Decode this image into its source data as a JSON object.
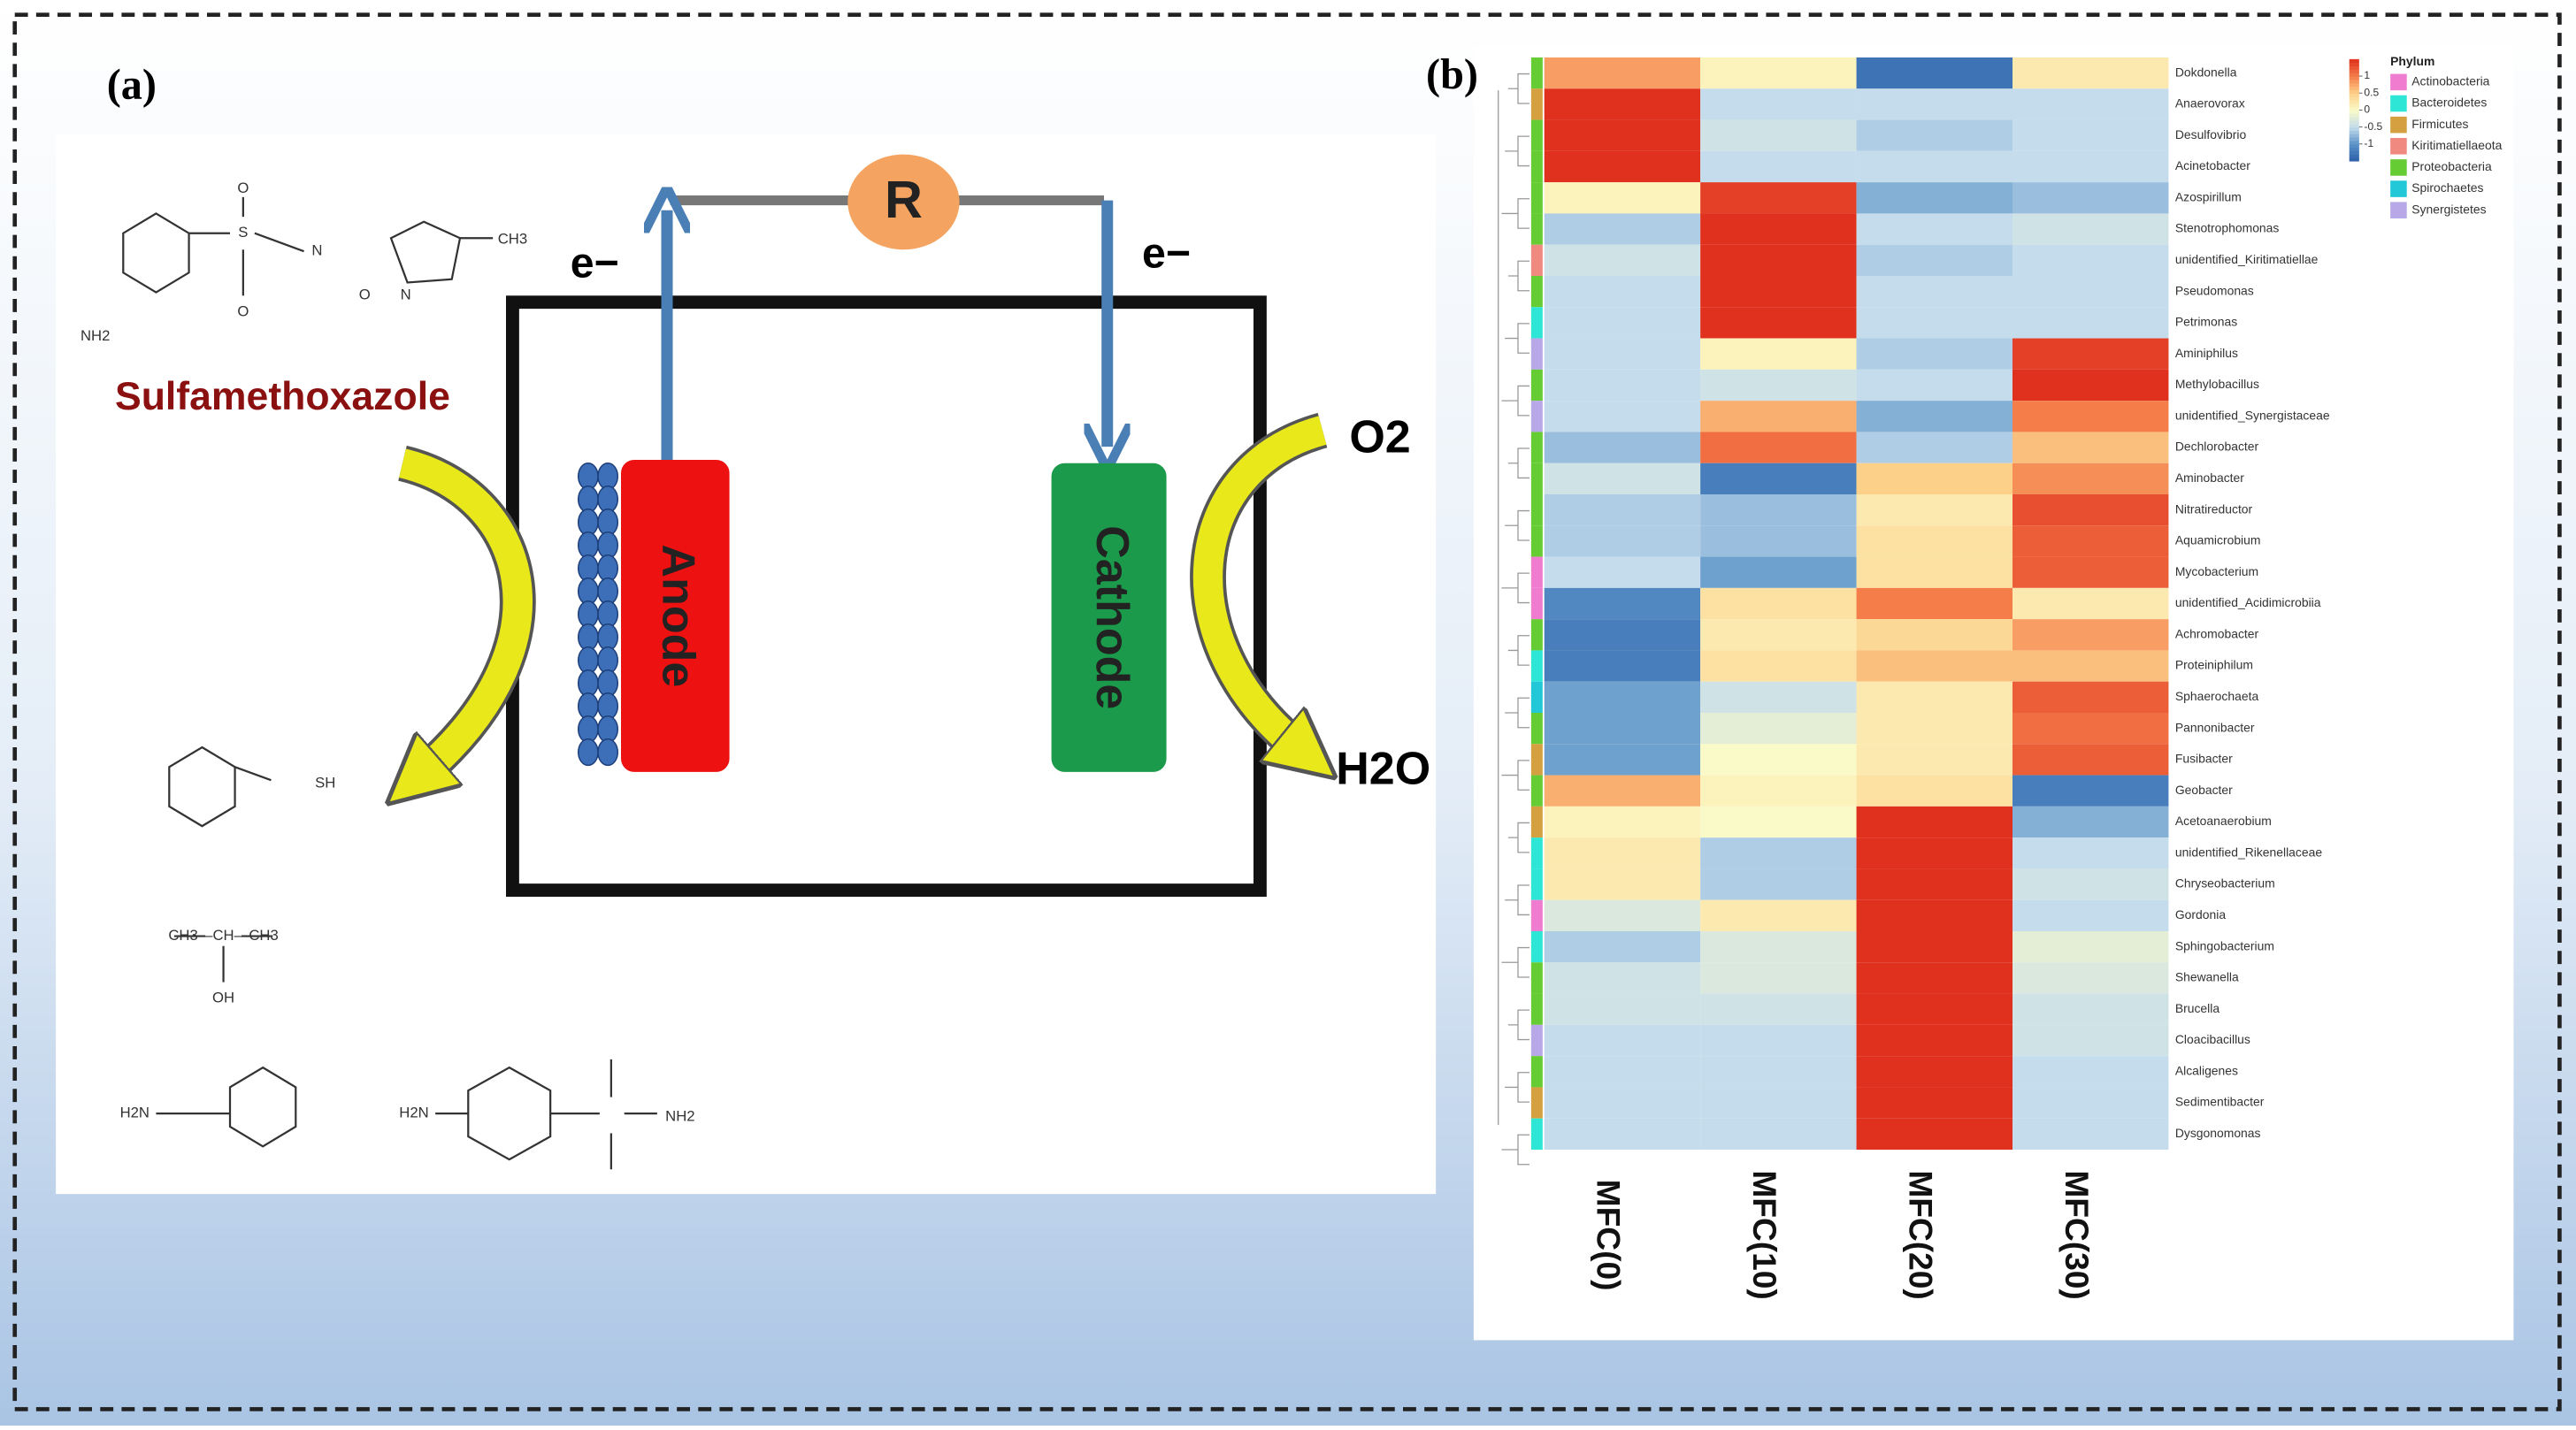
{
  "panel_a": {
    "label": "(a)",
    "resistor": "R",
    "electron_left": "e−",
    "electron_right": "e−",
    "compound": "Sulfamethoxazole",
    "anode": "Anode",
    "cathode": "Cathode",
    "oxygen": "O2",
    "water": "H2O",
    "structure_labels": [
      "NH2",
      "CH3",
      "SH",
      "CH3—CH—CH3",
      "OH",
      "H2N",
      "H2N",
      "NH2",
      "S",
      "N",
      "N",
      "O",
      "O",
      "O"
    ]
  },
  "panel_b": {
    "label": "(b)",
    "heatmap": {
      "columns": [
        "MFC(0)",
        "MFC(10)",
        "MFC(20)",
        "MFC(30)"
      ],
      "rows": [
        "Dokdonella",
        "Anaerovorax",
        "Desulfovibrio",
        "Acinetobacter",
        "Azospirillum",
        "Stenotrophomonas",
        "unidentified_Kiritimatiellae",
        "Pseudomonas",
        "Petrimonas",
        "Aminiphilus",
        "Methylobacillus",
        "unidentified_Synergistaceae",
        "Dechlorobacter",
        "Aminobacter",
        "Nitratireductor",
        "Aquamicrobium",
        "Mycobacterium",
        "unidentified_Acidimicrobiia",
        "Achromobacter",
        "Proteiniphilum",
        "Sphaerochaeta",
        "Pannonibacter",
        "Fusibacter",
        "Geobacter",
        "Acetoanaerobium",
        "unidentified_Rikenellaceae",
        "Chryseobacterium",
        "Gordonia",
        "Sphingobacterium",
        "Shewanella",
        "Brucella",
        "Cloacibacillus",
        "Alcaligenes",
        "Sedimentibacter",
        "Dysgonomonas"
      ],
      "row_phylum": [
        "Proteobacteria",
        "Firmicutes",
        "Proteobacteria",
        "Proteobacteria",
        "Proteobacteria",
        "Proteobacteria",
        "Kiritimatiellaeota",
        "Proteobacteria",
        "Bacteroidetes",
        "Synergistetes",
        "Proteobacteria",
        "Synergistetes",
        "Proteobacteria",
        "Proteobacteria",
        "Proteobacteria",
        "Proteobacteria",
        "Actinobacteria",
        "Actinobacteria",
        "Proteobacteria",
        "Bacteroidetes",
        "Spirochaetes",
        "Proteobacteria",
        "Firmicutes",
        "Proteobacteria",
        "Firmicutes",
        "Bacteroidetes",
        "Bacteroidetes",
        "Actinobacteria",
        "Bacteroidetes",
        "Proteobacteria",
        "Proteobacteria",
        "Synergistetes",
        "Proteobacteria",
        "Firmicutes",
        "Bacteroidetes"
      ],
      "values": [
        [
          0.8,
          0.1,
          -1.3,
          0.2
        ],
        [
          1.5,
          -0.5,
          -0.5,
          -0.5
        ],
        [
          1.5,
          -0.4,
          -0.6,
          -0.5
        ],
        [
          1.5,
          -0.5,
          -0.5,
          -0.5
        ],
        [
          0.1,
          1.4,
          -0.8,
          -0.7
        ],
        [
          -0.6,
          1.5,
          -0.5,
          -0.4
        ],
        [
          -0.4,
          1.5,
          -0.6,
          -0.5
        ],
        [
          -0.5,
          1.5,
          -0.5,
          -0.5
        ],
        [
          -0.5,
          1.5,
          -0.5,
          -0.5
        ],
        [
          -0.5,
          0.1,
          -0.6,
          1.4
        ],
        [
          -0.5,
          -0.4,
          -0.5,
          1.5
        ],
        [
          -0.5,
          0.7,
          -0.8,
          1.0
        ],
        [
          -0.7,
          1.1,
          -0.6,
          0.6
        ],
        [
          -0.4,
          -1.2,
          0.5,
          0.9
        ],
        [
          -0.6,
          -0.7,
          0.2,
          1.3
        ],
        [
          -0.6,
          -0.7,
          0.3,
          1.2
        ],
        [
          -0.5,
          -0.9,
          0.3,
          1.2
        ],
        [
          -1.1,
          0.3,
          1.0,
          0.2
        ],
        [
          -1.2,
          0.2,
          0.4,
          0.8
        ],
        [
          -1.2,
          0.3,
          0.6,
          0.6
        ],
        [
          -0.9,
          -0.4,
          0.2,
          1.2
        ],
        [
          -0.9,
          -0.2,
          0.2,
          1.1
        ],
        [
          -0.9,
          0.0,
          0.2,
          1.2
        ],
        [
          0.7,
          0.1,
          0.3,
          -1.2
        ],
        [
          0.1,
          0.0,
          1.5,
          -0.8
        ],
        [
          0.2,
          -0.6,
          1.5,
          -0.5
        ],
        [
          0.2,
          -0.6,
          1.5,
          -0.4
        ],
        [
          -0.3,
          0.2,
          1.5,
          -0.5
        ],
        [
          -0.6,
          -0.3,
          1.5,
          -0.2
        ],
        [
          -0.4,
          -0.3,
          1.5,
          -0.3
        ],
        [
          -0.4,
          -0.4,
          1.5,
          -0.4
        ],
        [
          -0.5,
          -0.5,
          1.5,
          -0.4
        ],
        [
          -0.5,
          -0.5,
          1.5,
          -0.5
        ],
        [
          -0.5,
          -0.5,
          1.5,
          -0.5
        ],
        [
          -0.5,
          -0.5,
          1.5,
          -0.5
        ]
      ],
      "colorbar_lim": [
        -1.5,
        1.5
      ],
      "colorbar_ticks": [
        1,
        0.5,
        0,
        -0.5,
        -1
      ]
    },
    "legend": {
      "title": "Phylum",
      "items": [
        {
          "name": "Actinobacteria",
          "color": "#f07cd0"
        },
        {
          "name": "Bacteroidetes",
          "color": "#2ee6d6"
        },
        {
          "name": "Firmicutes",
          "color": "#d4a040"
        },
        {
          "name": "Kiritimatiellaeota",
          "color": "#f08a80"
        },
        {
          "name": "Proteobacteria",
          "color": "#66cc33"
        },
        {
          "name": "Spirochaetes",
          "color": "#22c8d8"
        },
        {
          "name": "Synergistetes",
          "color": "#b8a8e8"
        }
      ]
    }
  }
}
